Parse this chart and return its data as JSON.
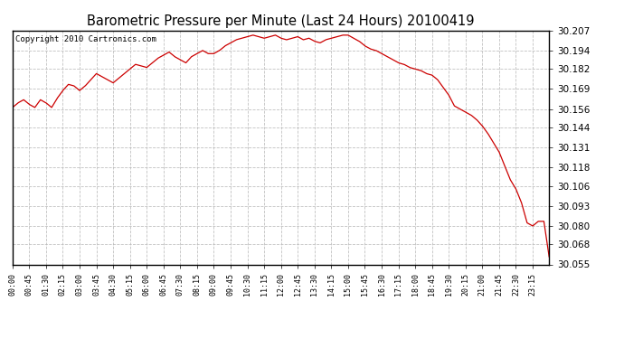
{
  "title": "Barometric Pressure per Minute (Last 24 Hours) 20100419",
  "copyright": "Copyright 2010 Cartronics.com",
  "line_color": "#cc0000",
  "background_color": "#ffffff",
  "grid_color": "#bbbbbb",
  "ylim": [
    30.055,
    30.207
  ],
  "yticks": [
    30.055,
    30.068,
    30.08,
    30.093,
    30.106,
    30.118,
    30.131,
    30.144,
    30.156,
    30.169,
    30.182,
    30.194,
    30.207
  ],
  "xtick_labels": [
    "00:00",
    "00:45",
    "01:30",
    "02:15",
    "03:00",
    "03:45",
    "04:30",
    "05:15",
    "06:00",
    "06:45",
    "07:30",
    "08:15",
    "09:00",
    "09:45",
    "10:30",
    "11:15",
    "12:00",
    "12:45",
    "13:30",
    "14:15",
    "15:00",
    "15:45",
    "16:30",
    "17:15",
    "18:00",
    "18:45",
    "19:30",
    "20:15",
    "21:00",
    "21:45",
    "22:30",
    "23:15"
  ],
  "key_times_min": [
    0,
    15,
    30,
    45,
    60,
    75,
    90,
    105,
    120,
    135,
    150,
    165,
    180,
    195,
    210,
    225,
    240,
    255,
    270,
    285,
    300,
    315,
    330,
    345,
    360,
    375,
    390,
    405,
    420,
    435,
    450,
    465,
    480,
    495,
    510,
    525,
    540,
    555,
    570,
    585,
    600,
    615,
    630,
    645,
    660,
    675,
    690,
    705,
    720,
    735,
    750,
    765,
    780,
    795,
    810,
    825,
    840,
    855,
    870,
    885,
    900,
    915,
    930,
    945,
    960,
    975,
    990,
    1005,
    1020,
    1035,
    1050,
    1065,
    1080,
    1095,
    1110,
    1125,
    1140,
    1155,
    1170,
    1185,
    1200,
    1215,
    1230,
    1245,
    1260,
    1275,
    1290,
    1305,
    1320,
    1335,
    1350,
    1365,
    1380,
    1395,
    1410,
    1425,
    1439
  ],
  "key_pressures": [
    30.157,
    30.16,
    30.162,
    30.159,
    30.157,
    30.162,
    30.16,
    30.157,
    30.163,
    30.168,
    30.172,
    30.171,
    30.168,
    30.171,
    30.175,
    30.179,
    30.177,
    30.175,
    30.173,
    30.176,
    30.179,
    30.182,
    30.185,
    30.184,
    30.183,
    30.186,
    30.189,
    30.191,
    30.193,
    30.19,
    30.188,
    30.186,
    30.19,
    30.192,
    30.194,
    30.192,
    30.192,
    30.194,
    30.197,
    30.199,
    30.201,
    30.202,
    30.203,
    30.204,
    30.203,
    30.202,
    30.203,
    30.204,
    30.202,
    30.201,
    30.202,
    30.203,
    30.201,
    30.202,
    30.2,
    30.199,
    30.201,
    30.202,
    30.203,
    30.204,
    30.204,
    30.202,
    30.2,
    30.197,
    30.195,
    30.194,
    30.192,
    30.19,
    30.188,
    30.186,
    30.185,
    30.183,
    30.182,
    30.181,
    30.179,
    30.178,
    30.175,
    30.17,
    30.165,
    30.158,
    30.156,
    30.154,
    30.152,
    30.149,
    30.145,
    30.14,
    30.134,
    30.128,
    30.119,
    30.11,
    30.104,
    30.095,
    30.082,
    30.08,
    30.083,
    30.083,
    30.06
  ]
}
